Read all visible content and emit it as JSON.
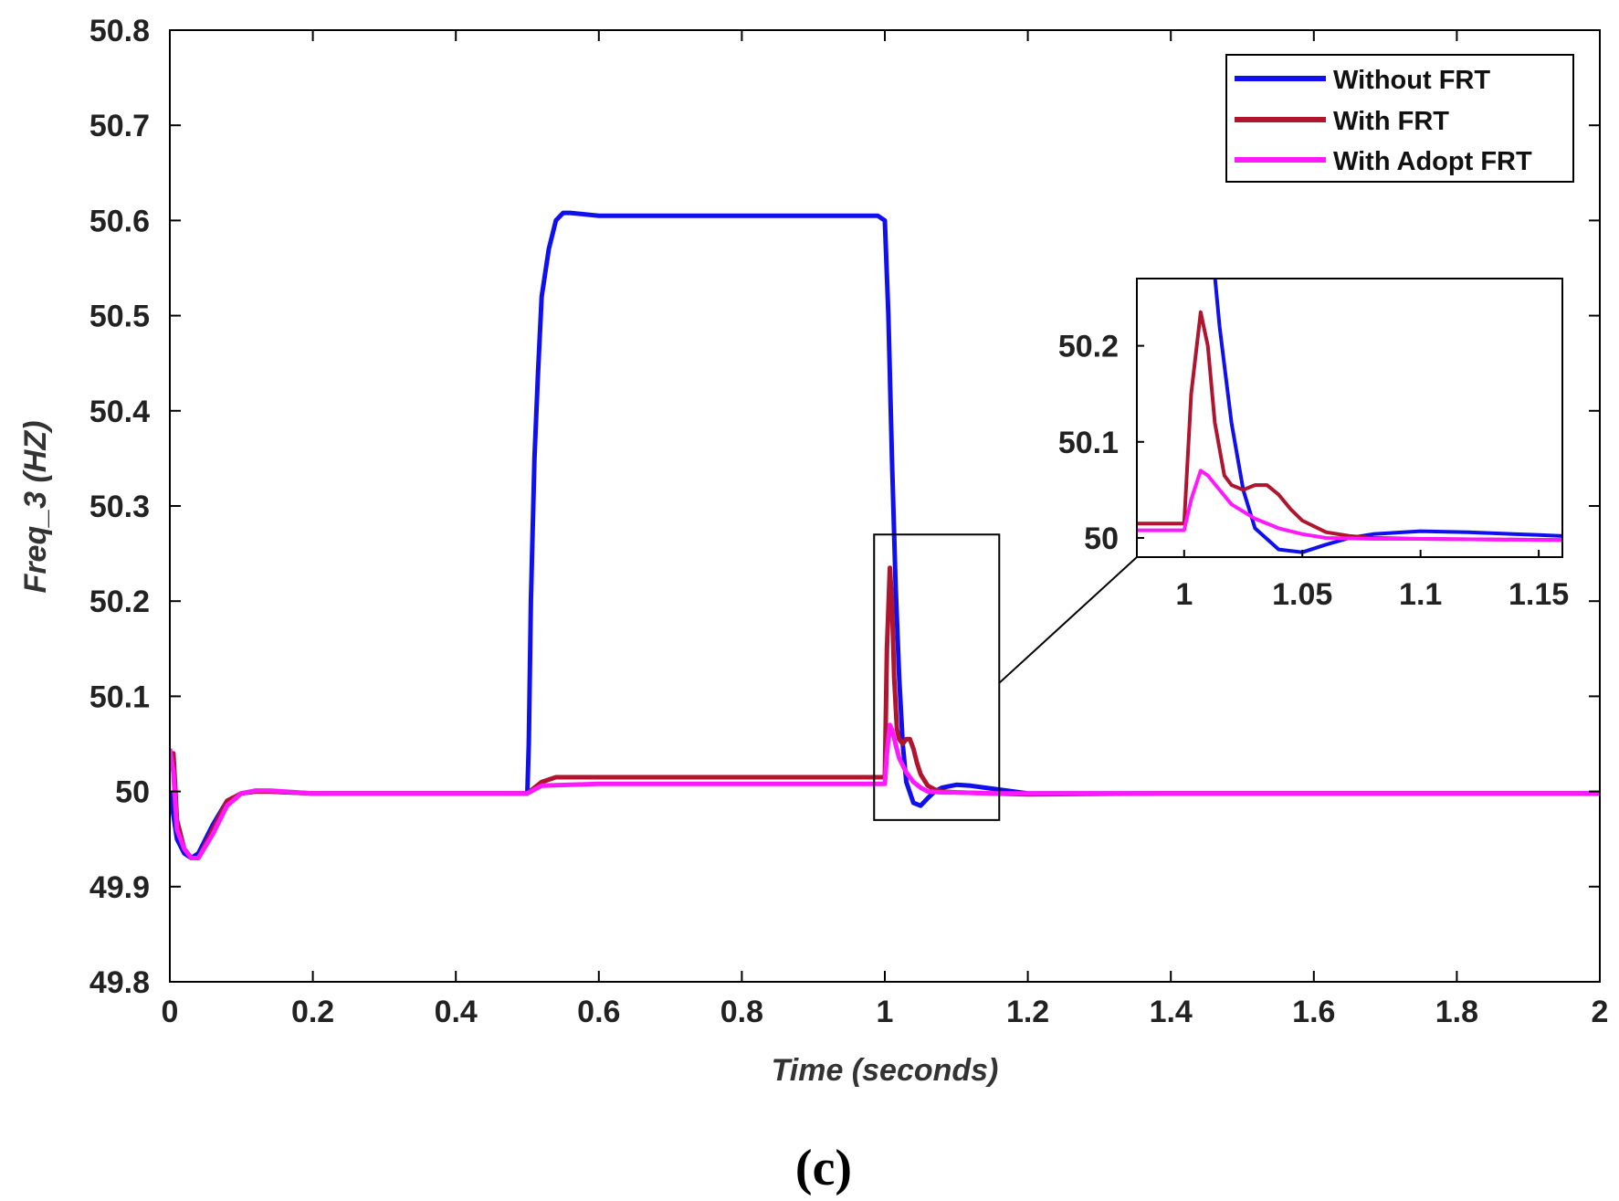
{
  "figure": {
    "caption": "(c)"
  },
  "colors": {
    "without_frt": "#1010ee",
    "with_frt": "#b01530",
    "with_adopt_frt": "#ff19ff",
    "axis": "#000000"
  },
  "chart_data": {
    "type": "line",
    "title": "",
    "xlabel": "Time (seconds)",
    "ylabel": "Freq_3 (HZ)",
    "xlim": [
      0,
      2
    ],
    "ylim": [
      49.8,
      50.8
    ],
    "xticks": [
      "0",
      "0.2",
      "0.4",
      "0.6",
      "0.8",
      "1",
      "1.2",
      "1.4",
      "1.6",
      "1.8",
      "2"
    ],
    "yticks": [
      "49.8",
      "49.9",
      "50",
      "50.1",
      "50.2",
      "50.3",
      "50.4",
      "50.5",
      "50.6",
      "50.7",
      "50.8"
    ],
    "legend_position": "top-right",
    "series": [
      {
        "name": "Without FRT",
        "color": "#1010ee",
        "x": [
          0,
          0.005,
          0.01,
          0.02,
          0.03,
          0.04,
          0.06,
          0.08,
          0.1,
          0.12,
          0.14,
          0.2,
          0.3,
          0.4,
          0.5,
          0.502,
          0.505,
          0.51,
          0.515,
          0.52,
          0.53,
          0.54,
          0.55,
          0.56,
          0.6,
          0.8,
          0.99,
          1.0,
          1.005,
          1.01,
          1.015,
          1.02,
          1.025,
          1.03,
          1.04,
          1.05,
          1.06,
          1.07,
          1.08,
          1.1,
          1.12,
          1.15,
          1.2,
          1.4,
          1.6,
          1.8,
          2.0
        ],
        "y": [
          50.0,
          49.975,
          49.95,
          49.935,
          49.93,
          49.935,
          49.965,
          49.99,
          49.998,
          50.0,
          50.0,
          49.998,
          49.998,
          49.998,
          49.998,
          50.05,
          50.2,
          50.35,
          50.44,
          50.52,
          50.57,
          50.6,
          50.608,
          50.608,
          50.605,
          50.605,
          50.605,
          50.6,
          50.5,
          50.35,
          50.22,
          50.12,
          50.05,
          50.01,
          49.988,
          49.985,
          49.993,
          50.0,
          50.004,
          50.007,
          50.006,
          50.003,
          49.998,
          49.998,
          49.998,
          49.998,
          49.998
        ]
      },
      {
        "name": "With FRT",
        "color": "#b01530",
        "x": [
          0,
          0.005,
          0.01,
          0.02,
          0.03,
          0.04,
          0.06,
          0.08,
          0.1,
          0.12,
          0.14,
          0.2,
          0.3,
          0.4,
          0.5,
          0.52,
          0.54,
          0.6,
          0.8,
          0.99,
          1.0,
          1.003,
          1.007,
          1.01,
          1.013,
          1.017,
          1.02,
          1.025,
          1.03,
          1.035,
          1.04,
          1.045,
          1.05,
          1.06,
          1.07,
          1.08,
          1.1,
          1.15,
          1.2,
          1.4,
          1.6,
          1.8,
          2.0
        ],
        "y": [
          50.03,
          50.04,
          49.97,
          49.94,
          49.93,
          49.93,
          49.96,
          49.99,
          49.998,
          50.0,
          50.0,
          49.998,
          49.998,
          49.998,
          49.998,
          50.01,
          50.015,
          50.015,
          50.015,
          50.015,
          50.015,
          50.15,
          50.235,
          50.2,
          50.12,
          50.065,
          50.055,
          50.05,
          50.055,
          50.055,
          50.045,
          50.03,
          50.018,
          50.006,
          50.002,
          50.0,
          49.999,
          49.998,
          49.997,
          49.998,
          49.998,
          49.998,
          49.998
        ]
      },
      {
        "name": "With Adopt FRT",
        "color": "#ff19ff",
        "x": [
          0,
          0.005,
          0.01,
          0.02,
          0.03,
          0.04,
          0.06,
          0.08,
          0.1,
          0.12,
          0.14,
          0.2,
          0.3,
          0.4,
          0.5,
          0.52,
          0.6,
          0.8,
          0.99,
          1.0,
          1.003,
          1.007,
          1.01,
          1.015,
          1.02,
          1.03,
          1.04,
          1.05,
          1.06,
          1.08,
          1.1,
          1.15,
          1.2,
          1.4,
          1.6,
          1.8,
          2.0
        ],
        "y": [
          50.045,
          50.02,
          49.96,
          49.94,
          49.93,
          49.93,
          49.955,
          49.985,
          49.998,
          50.001,
          50.001,
          49.998,
          49.998,
          49.998,
          49.998,
          50.006,
          50.008,
          50.008,
          50.008,
          50.008,
          50.04,
          50.07,
          50.065,
          50.05,
          50.035,
          50.02,
          50.01,
          50.004,
          50.0,
          49.999,
          49.999,
          49.998,
          49.998,
          49.998,
          49.998,
          49.998,
          49.998
        ]
      }
    ],
    "inset": {
      "xlim": [
        0.98,
        1.16
      ],
      "ylim": [
        49.98,
        50.27
      ],
      "xticks": [
        "1",
        "1.05",
        "1.1",
        "1.15"
      ],
      "yticks": [
        "50",
        "50.1",
        "50.2"
      ],
      "source_region": {
        "x": [
          0.985,
          1.16
        ],
        "y": [
          49.97,
          50.27
        ]
      }
    }
  }
}
